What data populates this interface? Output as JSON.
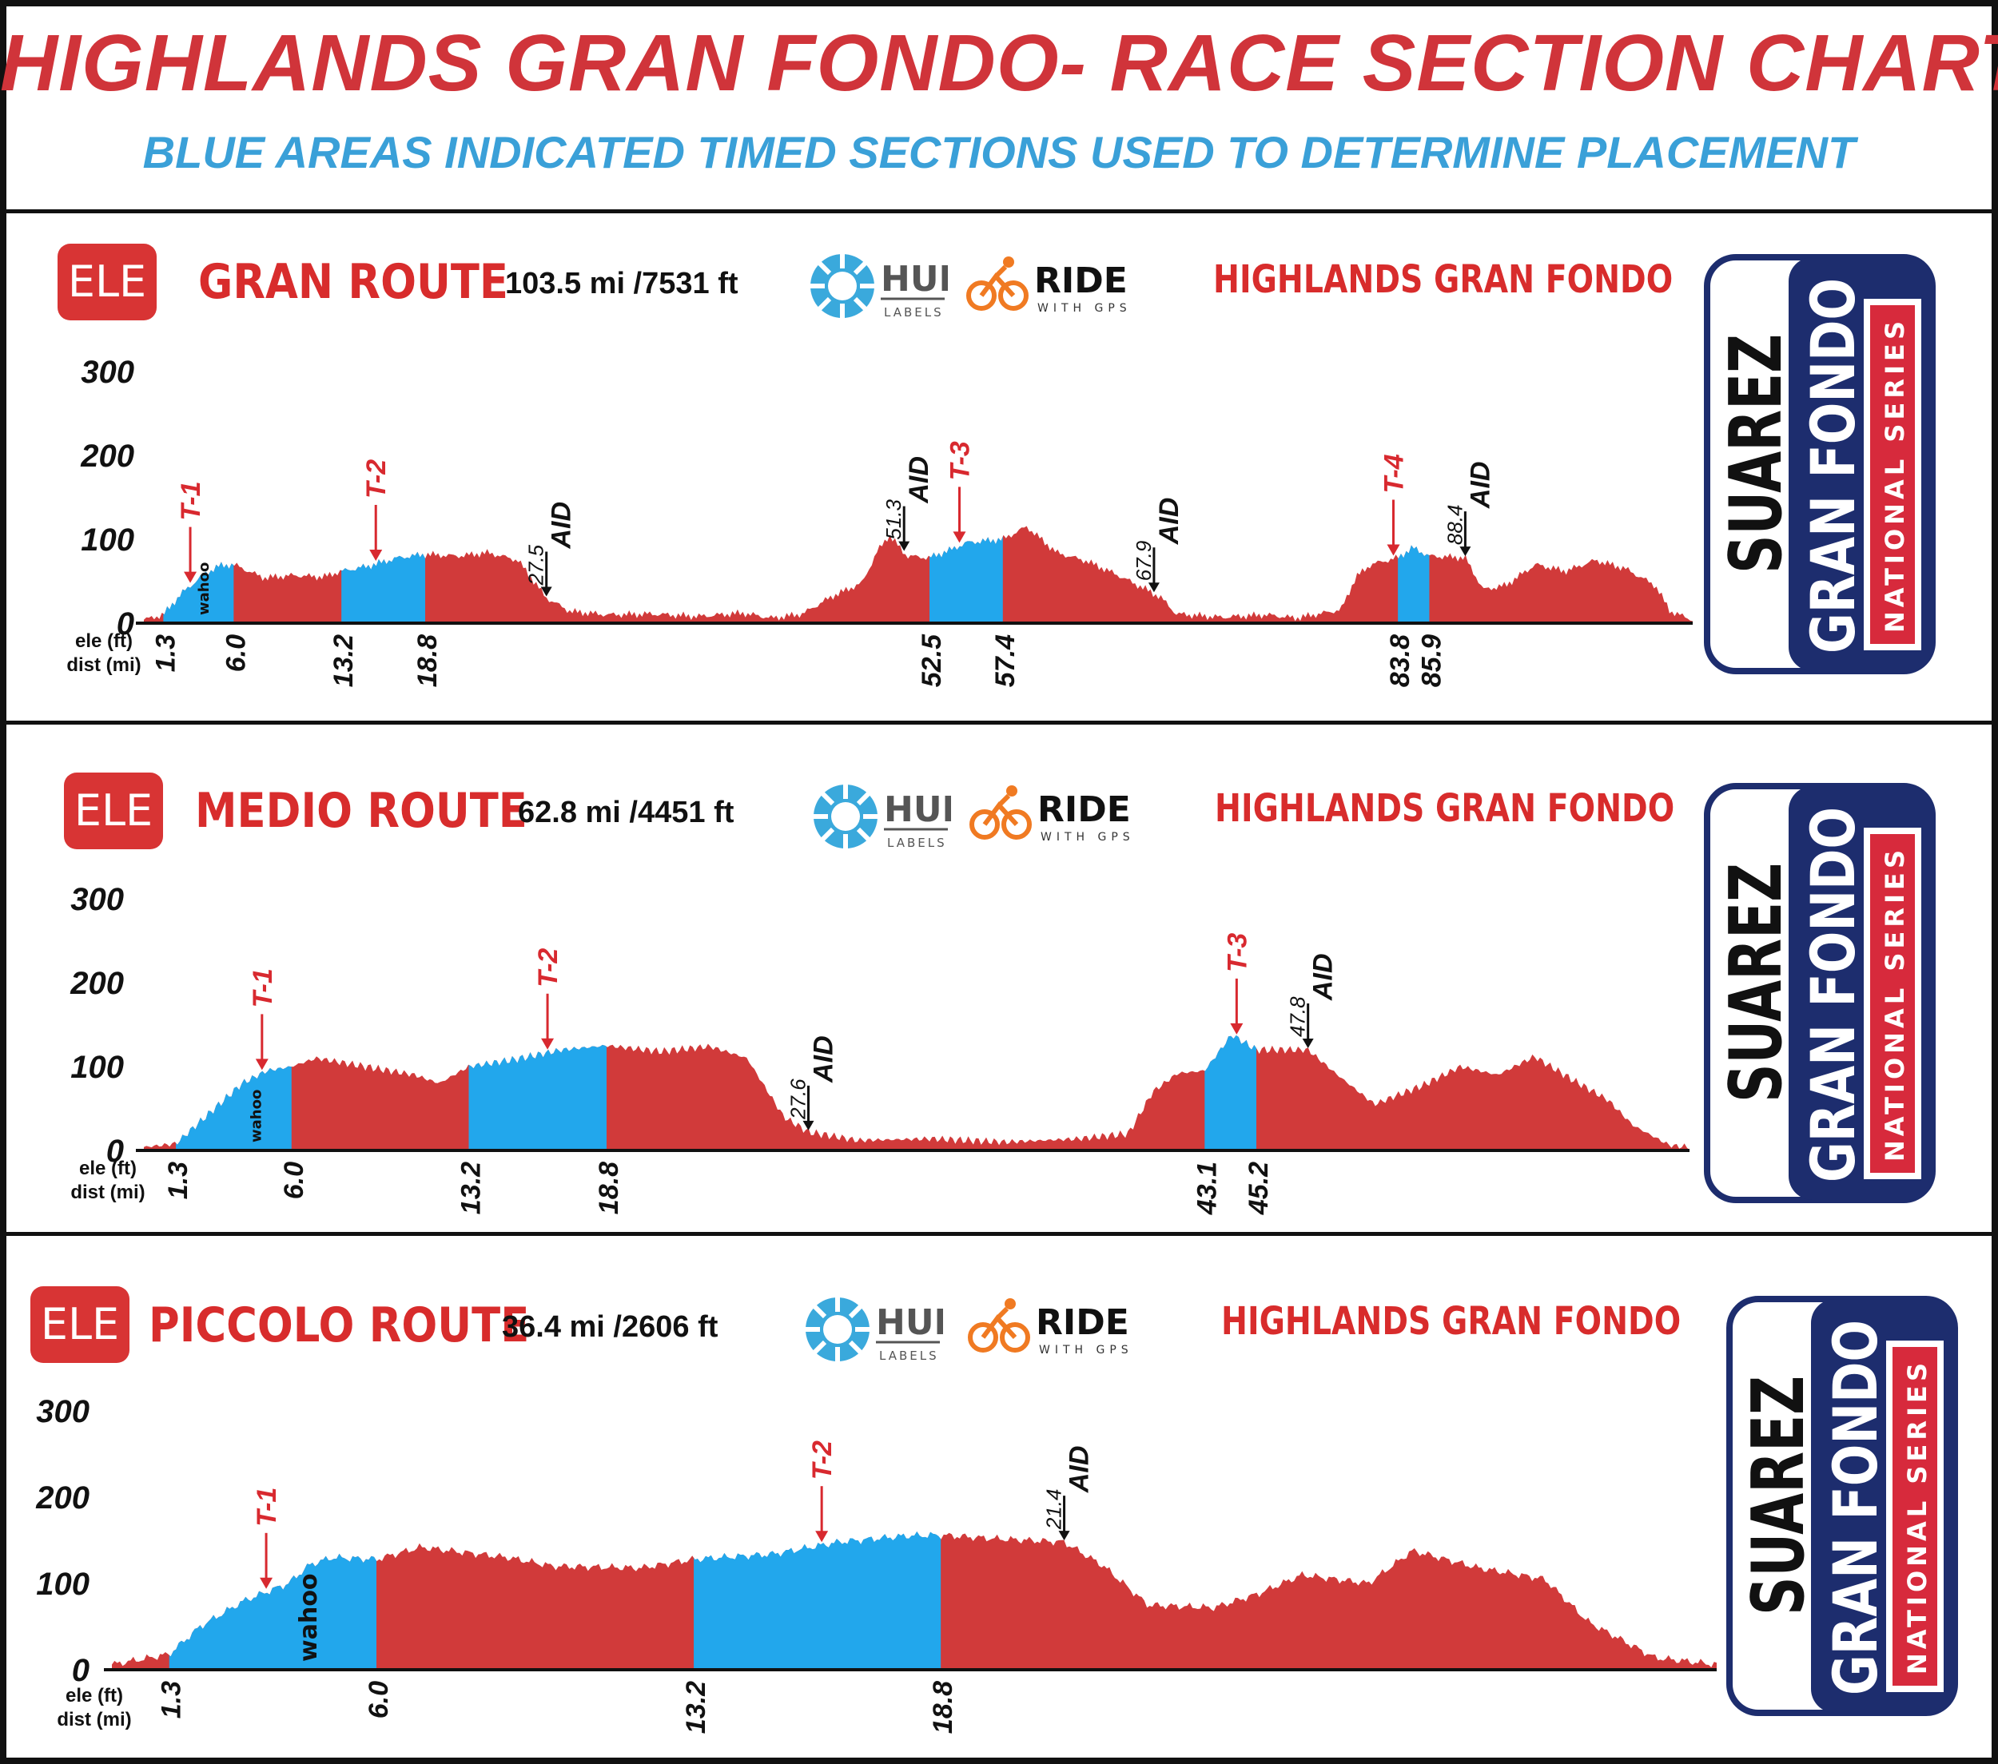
{
  "header": {
    "title": "HIGHLANDS GRAN FONDO- RACE SECTION CHARTS",
    "subtitle": "BLUE AREAS INDICATED TIMED SECTIONS USED TO DETERMINE PLACEMENT"
  },
  "logos": {
    "ele": "ELE",
    "hub": "HUB",
    "hub_sub": "LABELS",
    "ride": "RIDE",
    "ride_sub": "WITH GPS",
    "suarez": "SUAREZ",
    "gran_fondo": "GRAN FONDO",
    "national_series": "NATIONAL SERIES",
    "event": "HIGHLANDS GRAN FONDO",
    "wahoo": "wahoo"
  },
  "colors": {
    "elevation_fill": "#d13a3a",
    "timed_fill": "#22a7ec",
    "title_red": "#d0343a",
    "subtitle_blue": "#3aa0d8",
    "navy": "#1d2d6e"
  },
  "chart_data": [
    {
      "type": "area",
      "route": "GRAN ROUTE",
      "stats": "103.5 mi /7531 ft",
      "ylabel": "ele (ft)",
      "xlabel": "dist (mi)",
      "ylim": [
        0,
        300
      ],
      "xlim": [
        0,
        103.5
      ],
      "yticks": [
        0,
        100,
        200,
        300
      ],
      "xticks": [
        1.3,
        6.0,
        13.2,
        18.8,
        52.5,
        57.4,
        83.8,
        85.9
      ],
      "xtick_labels": [
        "1.3",
        "6.0",
        "13.2",
        "18.8",
        "52.5",
        "57.4",
        "83.8",
        "85.9"
      ],
      "timed_sections": [
        [
          1.3,
          6.0
        ],
        [
          13.2,
          18.8
        ],
        [
          52.5,
          57.4
        ],
        [
          83.8,
          85.9
        ]
      ],
      "wahoo_at": 3.9,
      "timed_markers": [
        {
          "label": "T-1",
          "x": 3.1
        },
        {
          "label": "T-2",
          "x": 15.5
        },
        {
          "label": "T-3",
          "x": 54.5
        },
        {
          "label": "T-4",
          "x": 83.5
        }
      ],
      "aid_markers": [
        {
          "label": "AID",
          "value": "27.5",
          "x": 26.9
        },
        {
          "label": "AID",
          "value": "51.3",
          "x": 50.8
        },
        {
          "label": "AID",
          "value": "67.9",
          "x": 67.5
        },
        {
          "label": "AID",
          "value": "88.4",
          "x": 88.3
        }
      ],
      "profile": [
        [
          0,
          4
        ],
        [
          1.3,
          10
        ],
        [
          2.5,
          35
        ],
        [
          4,
          58
        ],
        [
          5,
          68
        ],
        [
          6,
          70
        ],
        [
          8,
          54
        ],
        [
          10,
          57
        ],
        [
          12,
          55
        ],
        [
          13.2,
          62
        ],
        [
          15,
          68
        ],
        [
          17,
          78
        ],
        [
          18.8,
          82
        ],
        [
          21,
          80
        ],
        [
          23,
          84
        ],
        [
          25,
          75
        ],
        [
          26.9,
          30
        ],
        [
          28.5,
          14
        ],
        [
          31,
          10
        ],
        [
          34,
          11
        ],
        [
          37,
          8
        ],
        [
          40,
          12
        ],
        [
          42,
          6
        ],
        [
          44,
          11
        ],
        [
          46,
          32
        ],
        [
          48,
          48
        ],
        [
          49,
          85
        ],
        [
          49.8,
          105
        ],
        [
          51,
          80
        ],
        [
          52.5,
          78
        ],
        [
          54,
          88
        ],
        [
          55,
          96
        ],
        [
          57.4,
          100
        ],
        [
          59,
          115
        ],
        [
          61,
          84
        ],
        [
          63,
          74
        ],
        [
          65,
          58
        ],
        [
          67,
          40
        ],
        [
          68,
          30
        ],
        [
          69,
          11
        ],
        [
          72,
          7
        ],
        [
          75,
          10
        ],
        [
          77,
          6
        ],
        [
          80,
          16
        ],
        [
          81,
          55
        ],
        [
          82,
          70
        ],
        [
          83.8,
          78
        ],
        [
          84.8,
          90
        ],
        [
          85.9,
          80
        ],
        [
          88.3,
          78
        ],
        [
          89.5,
          40
        ],
        [
          91,
          45
        ],
        [
          93,
          70
        ],
        [
          95,
          62
        ],
        [
          97,
          75
        ],
        [
          99,
          65
        ],
        [
          101,
          45
        ],
        [
          102,
          14
        ],
        [
          103.5,
          4
        ]
      ]
    },
    {
      "type": "area",
      "route": "MEDIO ROUTE",
      "stats": "62.8 mi /4451 ft",
      "ylabel": "ele (ft)",
      "xlabel": "dist (mi)",
      "ylim": [
        0,
        300
      ],
      "xlim": [
        0,
        62.8
      ],
      "yticks": [
        0,
        100,
        200,
        300
      ],
      "xticks": [
        1.3,
        6.0,
        13.2,
        18.8,
        43.1,
        45.2
      ],
      "xtick_labels": [
        "1.3",
        "6.0",
        "13.2",
        "18.8",
        "43.1",
        "45.2"
      ],
      "timed_sections": [
        [
          1.3,
          6.0
        ],
        [
          13.2,
          18.8
        ],
        [
          43.1,
          45.2
        ]
      ],
      "wahoo_at": 4.5,
      "timed_markers": [
        {
          "label": "T-1",
          "x": 4.8
        },
        {
          "label": "T-2",
          "x": 16.4
        },
        {
          "label": "T-3",
          "x": 44.4
        }
      ],
      "aid_markers": [
        {
          "label": "AID",
          "value": "27.6",
          "x": 27.0
        },
        {
          "label": "AID",
          "value": "47.8",
          "x": 47.3
        }
      ],
      "profile": [
        [
          0,
          4
        ],
        [
          1.3,
          8
        ],
        [
          2.5,
          40
        ],
        [
          4,
          80
        ],
        [
          5,
          95
        ],
        [
          6,
          100
        ],
        [
          7,
          110
        ],
        [
          9,
          100
        ],
        [
          11,
          90
        ],
        [
          12,
          80
        ],
        [
          13.2,
          100
        ],
        [
          15,
          108
        ],
        [
          17,
          120
        ],
        [
          18.8,
          125
        ],
        [
          21,
          118
        ],
        [
          23,
          124
        ],
        [
          24.5,
          110
        ],
        [
          26,
          40
        ],
        [
          27,
          22
        ],
        [
          29,
          12
        ],
        [
          32,
          14
        ],
        [
          35,
          10
        ],
        [
          38,
          14
        ],
        [
          40,
          20
        ],
        [
          41,
          70
        ],
        [
          42,
          92
        ],
        [
          43.1,
          95
        ],
        [
          44.2,
          138
        ],
        [
          45.2,
          120
        ],
        [
          47.3,
          120
        ],
        [
          48.5,
          90
        ],
        [
          50,
          55
        ],
        [
          52,
          78
        ],
        [
          53.5,
          100
        ],
        [
          55,
          90
        ],
        [
          56.5,
          112
        ],
        [
          58,
          85
        ],
        [
          59.5,
          60
        ],
        [
          60.5,
          30
        ],
        [
          62,
          6
        ],
        [
          62.8,
          4
        ]
      ]
    },
    {
      "type": "area",
      "route": "PICCOLO ROUTE",
      "stats": "36.4 mi /2606 ft",
      "ylabel": "ele (ft)",
      "xlabel": "dist (mi)",
      "ylim": [
        0,
        300
      ],
      "xlim": [
        0,
        36.4
      ],
      "yticks": [
        0,
        100,
        200,
        300
      ],
      "xticks": [
        1.3,
        6.0,
        13.2,
        18.8
      ],
      "xtick_labels": [
        "1.3",
        "6.0",
        "13.2",
        "18.8"
      ],
      "timed_sections": [
        [
          1.3,
          6.0
        ],
        [
          13.2,
          18.8
        ],
        [
          13.2,
          18.8
        ]
      ],
      "wahoo_at": 4.5,
      "timed_markers": [
        {
          "label": "T-1",
          "x": 3.5
        },
        {
          "label": "T-2",
          "x": 16.1
        }
      ],
      "aid_markers": [
        {
          "label": "AID",
          "value": "21.4",
          "x": 21.6
        }
      ],
      "profile": [
        [
          0,
          6
        ],
        [
          1.3,
          18
        ],
        [
          2,
          50
        ],
        [
          3,
          80
        ],
        [
          4,
          100
        ],
        [
          4.5,
          122
        ],
        [
          5,
          130
        ],
        [
          6,
          128
        ],
        [
          7,
          142
        ],
        [
          9,
          130
        ],
        [
          10,
          120
        ],
        [
          12,
          118
        ],
        [
          13.2,
          128
        ],
        [
          15,
          134
        ],
        [
          16.5,
          148
        ],
        [
          18,
          155
        ],
        [
          18.8,
          156
        ],
        [
          20,
          152
        ],
        [
          21.6,
          148
        ],
        [
          22.5,
          120
        ],
        [
          23.5,
          75
        ],
        [
          25,
          72
        ],
        [
          26,
          88
        ],
        [
          27,
          110
        ],
        [
          28.5,
          100
        ],
        [
          29.5,
          138
        ],
        [
          31,
          118
        ],
        [
          32.5,
          105
        ],
        [
          33.5,
          55
        ],
        [
          35,
          14
        ],
        [
          36.4,
          6
        ]
      ]
    }
  ]
}
